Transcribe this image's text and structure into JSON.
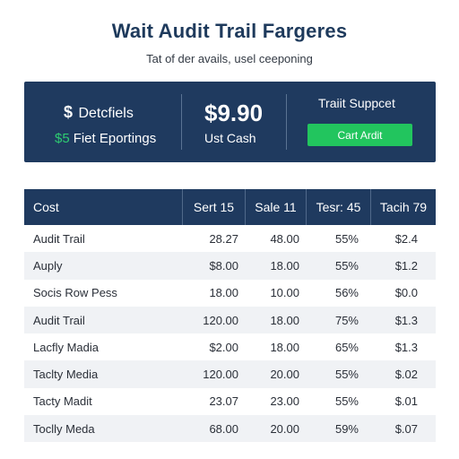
{
  "header": {
    "title": "Wait Audit Trail Fargeres",
    "subtitle": "Tat of der avails, usel ceeponing"
  },
  "banner": {
    "left_icon": "$",
    "left_line1": "Detcfiels",
    "left_line2_accent": "$5",
    "left_line2": "Fiet Eportings",
    "mid_value": "$9.90",
    "mid_label": "Ust Cash",
    "right_title": "Traiit Suppcet",
    "right_button": "Cart Ardit"
  },
  "table": {
    "headers": [
      "Cost",
      "Sert 15",
      "Sale 11",
      "Tesr: 45",
      "Tacih 79"
    ],
    "rows": [
      [
        "Audit Trail",
        "28.27",
        "48.00",
        "55%",
        "$2.4"
      ],
      [
        "Auply",
        "$8.00",
        "18.00",
        "55%",
        "$1.2"
      ],
      [
        "Socis Row Pess",
        "18.00",
        "10.00",
        "56%",
        "$0.0"
      ],
      [
        "Audit Trail",
        "120.00",
        "18.00",
        "75%",
        "$1.3"
      ],
      [
        "Lacfly Madia",
        "$2.00",
        "18.00",
        "65%",
        "$1.3"
      ],
      [
        "Taclty Media",
        "120.00",
        "20.00",
        "55%",
        "$.02"
      ],
      [
        "Tacty Madit",
        "23.07",
        "23.00",
        "55%",
        "$.01"
      ],
      [
        "Toclly Meda",
        "68.00",
        "20.00",
        "59%",
        "$.07"
      ]
    ]
  },
  "colors": {
    "primary": "#1f3a5f",
    "accent": "#22c55e",
    "row_alt": "#f0f2f5"
  }
}
